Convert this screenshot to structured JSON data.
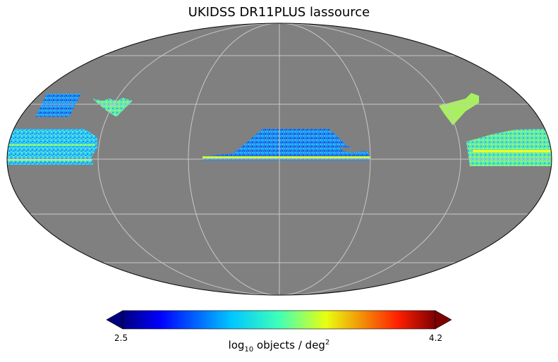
{
  "chart_data": {
    "type": "heatmap",
    "projection": "mollweide",
    "title": "UKIDSS DR11PLUS lassource",
    "grid": true,
    "background_color": "#808080",
    "colormap": "jet",
    "colorbar": {
      "orientation": "horizontal",
      "placement": "bottom",
      "min": 2.5,
      "max": 4.2,
      "tick_labels": [
        "2.5",
        "4.2"
      ],
      "label_parts": {
        "pre": "log",
        "sub": "10",
        "mid": " objects / deg",
        "sup": "2"
      },
      "extend": "both"
    },
    "typical_value_range": [
      3.1,
      3.6
    ],
    "coverage_regions": [
      {
        "name": "equatorial-center",
        "dominant_color": "#1e90ff"
      },
      {
        "name": "left-edge-strip",
        "dominant_color": "#3fc0ff"
      },
      {
        "name": "right-edge-strip",
        "dominant_color": "#5fe0c0"
      },
      {
        "name": "upper-left-patch",
        "dominant_color": "#2a9af0"
      },
      {
        "name": "upper-left-wedge",
        "dominant_color": "#60e0b0"
      },
      {
        "name": "upper-right-wedge",
        "dominant_color": "#a0f060"
      }
    ]
  }
}
